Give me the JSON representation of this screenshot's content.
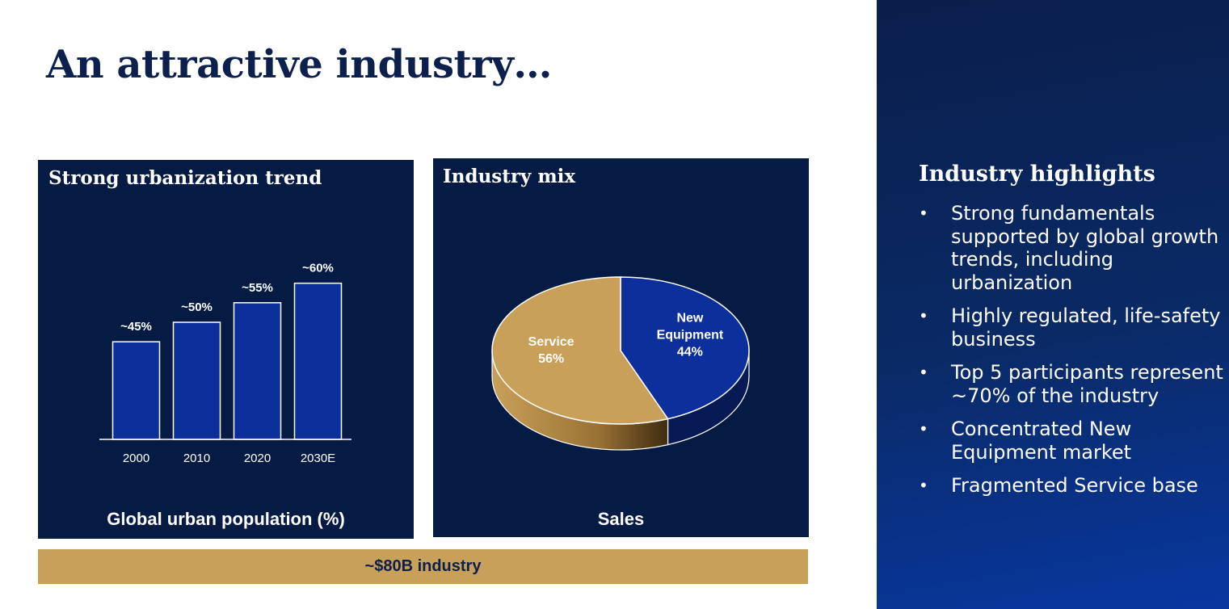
{
  "slide": {
    "title": "An attractive industry…",
    "footer_bar": "~$80B industry"
  },
  "panels": {
    "left": {
      "title": "Strong urbanization trend",
      "caption": "Global urban population (%)"
    },
    "mid": {
      "title": "Industry mix",
      "caption": "Sales"
    }
  },
  "sidebar": {
    "title": "Industry highlights",
    "bullet_glyph": "•",
    "items": [
      "Strong fundamentals supported by global growth trends, including urbanization",
      "Highly regulated, life-safety business",
      "Top 5 participants represent ~70% of the industry",
      "Concentrated New Equipment market",
      "Fragmented Service base"
    ]
  },
  "colors": {
    "navy": "#061b44",
    "bar_blue": "#0d2f9c",
    "gold": "#c9a05a",
    "title_navy": "#0c1f4d"
  },
  "chart_data": [
    {
      "type": "bar",
      "title": "Strong urbanization trend",
      "xlabel": "Global urban population (%)",
      "categories": [
        "2000",
        "2010",
        "2020",
        "2030E"
      ],
      "values": [
        45,
        50,
        55,
        60
      ],
      "data_labels": [
        "~45%",
        "~50%",
        "~55%",
        "~60%"
      ],
      "ylim": [
        20,
        62
      ],
      "grid": false,
      "color": "#0d2f9c"
    },
    {
      "type": "pie",
      "title": "Industry mix",
      "xlabel": "Sales",
      "slices": [
        {
          "label_lines": [
            "New",
            "Equipment",
            "44%"
          ],
          "value": 44,
          "color": "#0d2f9c"
        },
        {
          "label_lines": [
            "Service",
            "56%"
          ],
          "value": 56,
          "color": "#c9a05a"
        }
      ]
    }
  ]
}
